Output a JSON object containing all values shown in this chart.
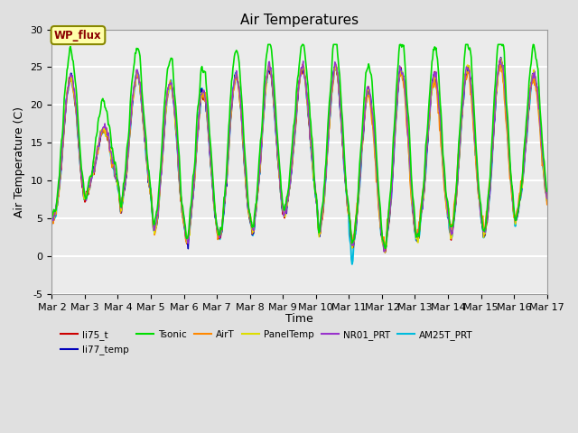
{
  "title": "Air Temperatures",
  "ylabel": "Air Temperature (C)",
  "xlabel": "Time",
  "ylim": [
    -5,
    30
  ],
  "xlim": [
    0,
    15
  ],
  "series": [
    {
      "label": "li75_t",
      "color": "#cc0000",
      "lw": 1.0
    },
    {
      "label": "li77_temp",
      "color": "#0000bb",
      "lw": 1.0
    },
    {
      "label": "Tsonic",
      "color": "#00dd00",
      "lw": 1.2
    },
    {
      "label": "AirT",
      "color": "#ff8800",
      "lw": 1.0
    },
    {
      "label": "PanelTemp",
      "color": "#dddd00",
      "lw": 1.0
    },
    {
      "label": "NR01_PRT",
      "color": "#9933cc",
      "lw": 1.0
    },
    {
      "label": "AM25T_PRT",
      "color": "#00bbdd",
      "lw": 1.4
    }
  ],
  "xtick_labels": [
    "Mar 2",
    "Mar 3",
    "Mar 4",
    "Mar 5",
    "Mar 6",
    "Mar 7",
    "Mar 8",
    "Mar 9",
    "Mar 10",
    "Mar 11",
    "Mar 12",
    "Mar 13",
    "Mar 14",
    "Mar 15",
    "Mar 16",
    "Mar 17"
  ],
  "ytick_vals": [
    -5,
    0,
    5,
    10,
    15,
    20,
    25,
    30
  ],
  "site_label": "WP_flux",
  "bg_color": "#e0e0e0",
  "plot_bg": "#ebebeb",
  "grid_color": "white",
  "title_fontsize": 11,
  "label_fontsize": 9,
  "tick_fontsize": 8
}
